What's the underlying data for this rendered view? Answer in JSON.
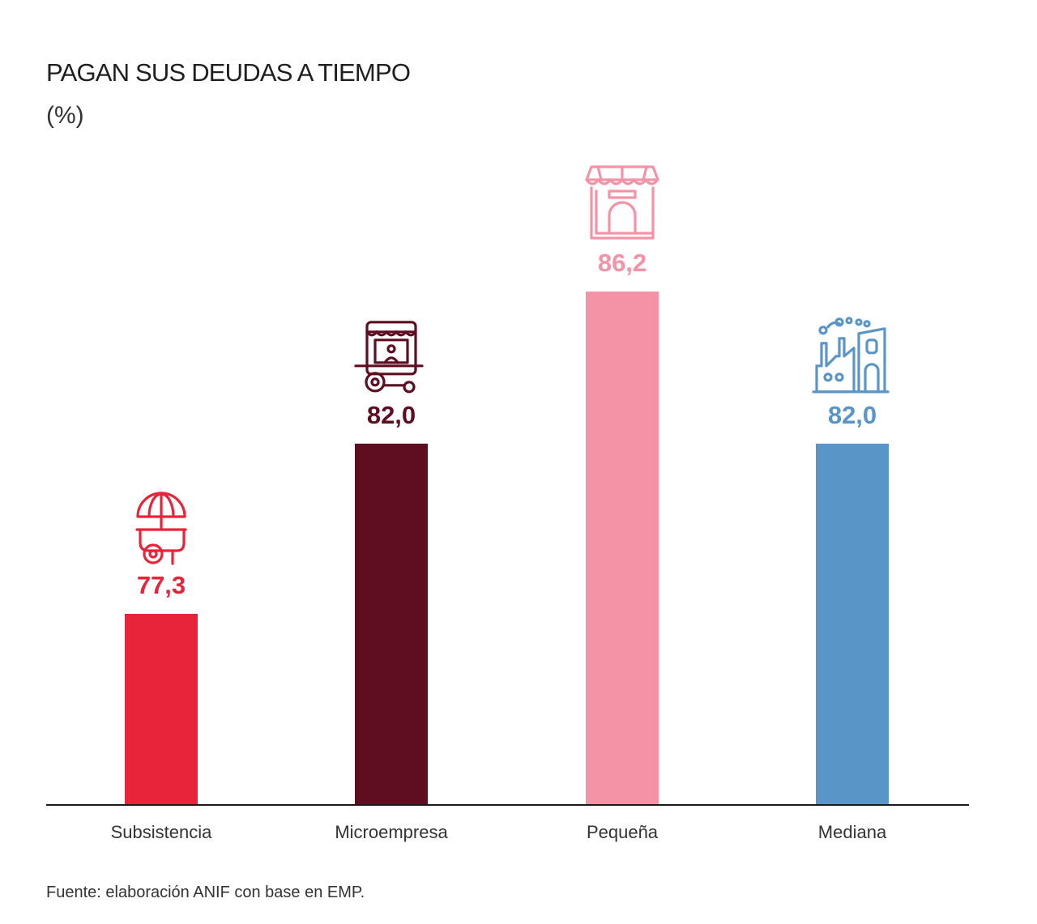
{
  "title": "PAGAN SUS DEUDAS A TIEMPO",
  "subtitle": "(%)",
  "source": "Fuente: elaboración ANIF con base en EMP.",
  "chart_data": {
    "type": "bar",
    "title": "PAGAN SUS DEUDAS A TIEMPO",
    "subtitle": "(%)",
    "categories": [
      "Subsistencia",
      "Microempresa",
      "Pequeña",
      "Mediana"
    ],
    "values": [
      77.3,
      82.0,
      86.2,
      82.0
    ],
    "value_labels": [
      "77,3",
      "82,0",
      "86,2",
      "82,0"
    ],
    "colors": [
      "#e8243a",
      "#5e0e20",
      "#f593a6",
      "#5a95c8"
    ],
    "icons": [
      "street-cart-umbrella-icon",
      "food-truck-icon",
      "storefront-icon",
      "factory-icon"
    ],
    "grid": false,
    "legend": "none"
  }
}
